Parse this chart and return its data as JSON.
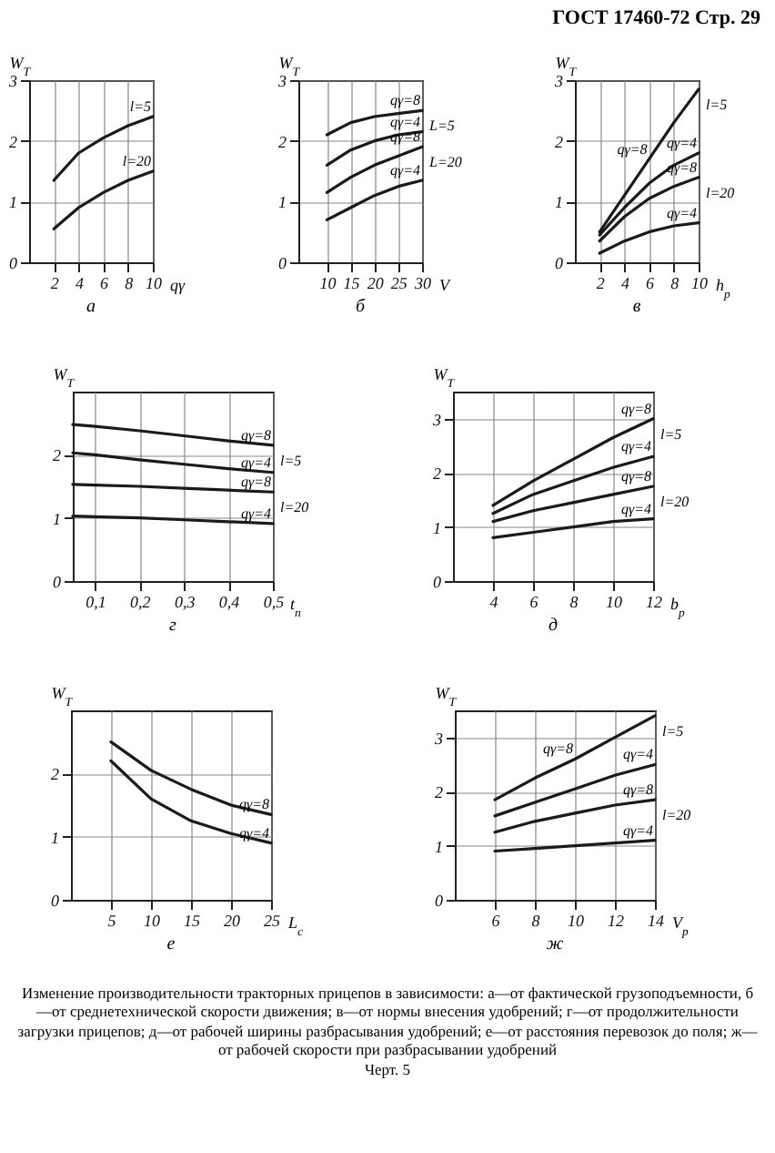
{
  "chart_data": [
    {
      "type": "line",
      "title": "а",
      "xlabel": "qγ",
      "ylabel": "W$_{T}$",
      "x": [
        2,
        4,
        6,
        8,
        10
      ],
      "xlim": [
        0,
        10
      ],
      "xticks": [
        2,
        4,
        6,
        8,
        10
      ],
      "ylim": [
        0,
        3
      ],
      "yticks": [
        0,
        1,
        2,
        3
      ],
      "grid": true,
      "annotations": [
        "ГОСТ 17460-72 Стр. 29"
      ],
      "series": [
        {
          "name": "l=5",
          "color": "#1a1a1a",
          "values": [
            1.35,
            1.8,
            2.05,
            2.25,
            2.4
          ]
        },
        {
          "name": "l=20",
          "color": "#1a1a1a",
          "values": [
            0.55,
            0.9,
            1.15,
            1.35,
            1.5
          ]
        }
      ]
    },
    {
      "type": "line",
      "title": "б",
      "xlabel": "V",
      "ylabel": "W$_{T}$",
      "x": [
        10,
        15,
        20,
        25,
        30
      ],
      "xlim": [
        4,
        30
      ],
      "xticks": [
        10,
        15,
        20,
        25,
        30
      ],
      "ylim": [
        0,
        3
      ],
      "yticks": [
        0,
        1,
        2,
        3
      ],
      "grid": true,
      "annotations": [
        {
          "text": "L=5",
          "x": 30,
          "y": 2.5
        },
        {
          "text": "L=20",
          "x": 30,
          "y": 1.9
        }
      ],
      "series": [
        {
          "name": "qγ=8",
          "color": "#1a1a1a",
          "values": [
            2.1,
            2.3,
            2.4,
            2.45,
            2.5
          ]
        },
        {
          "name": "qγ=4",
          "color": "#1a1a1a",
          "values": [
            1.6,
            1.85,
            2.0,
            2.1,
            2.15
          ]
        },
        {
          "name": "qγ=8",
          "color": "#1a1a1a",
          "values": [
            1.15,
            1.4,
            1.6,
            1.75,
            1.9
          ]
        },
        {
          "name": "qγ=4",
          "color": "#1a1a1a",
          "values": [
            0.7,
            0.9,
            1.1,
            1.25,
            1.35
          ]
        }
      ]
    },
    {
      "type": "line",
      "title": "в",
      "xlabel": "h$_{p}$",
      "ylabel": "W$_{T}$",
      "x": [
        2,
        4,
        6,
        8,
        10
      ],
      "xlim": [
        0,
        10
      ],
      "xticks": [
        2,
        4,
        6,
        8,
        10
      ],
      "ylim": [
        0,
        3
      ],
      "yticks": [
        0,
        1,
        2,
        3
      ],
      "grid": true,
      "annotations": [
        {
          "text": "l=5",
          "x": 10,
          "y": 2.85
        },
        {
          "text": "l=20",
          "x": 10,
          "y": 1.4
        }
      ],
      "series": [
        {
          "name": "qγ=8",
          "color": "#1a1a1a",
          "values": [
            0.5,
            1.1,
            1.7,
            2.3,
            2.85
          ]
        },
        {
          "name": "qγ=4",
          "color": "#1a1a1a",
          "values": [
            0.45,
            0.9,
            1.3,
            1.6,
            1.8
          ]
        },
        {
          "name": "qγ=8",
          "color": "#1a1a1a",
          "values": [
            0.35,
            0.75,
            1.05,
            1.25,
            1.4
          ]
        },
        {
          "name": "qγ=4",
          "color": "#1a1a1a",
          "values": [
            0.15,
            0.35,
            0.5,
            0.6,
            0.65
          ]
        }
      ]
    },
    {
      "type": "line",
      "title": "г",
      "xlabel": "t$_{п}$",
      "ylabel": "W$_{T}$",
      "x": [
        0.05,
        0.1,
        0.2,
        0.3,
        0.4,
        0.5
      ],
      "xlim": [
        0.05,
        0.5
      ],
      "xticks": [
        {
          "value": 0.1,
          "label": "0,1"
        },
        {
          "value": 0.2,
          "label": "0,2"
        },
        {
          "value": 0.3,
          "label": "0,3"
        },
        {
          "value": 0.4,
          "label": "0,4"
        },
        {
          "value": 0.5,
          "label": "0,5"
        }
      ],
      "ylim": [
        0,
        3
      ],
      "yticks": [
        0,
        1,
        2
      ],
      "grid": true,
      "annotations": [
        {
          "text": "l=5",
          "x": 0.5,
          "y": 2.15
        },
        {
          "text": "l=20",
          "x": 0.5,
          "y": 1.41
        }
      ],
      "series": [
        {
          "name": "qγ=8",
          "color": "#1a1a1a",
          "values": [
            2.48,
            2.45,
            2.38,
            2.3,
            2.22,
            2.15
          ]
        },
        {
          "name": "qγ=4",
          "color": "#1a1a1a",
          "values": [
            2.03,
            2.0,
            1.92,
            1.85,
            1.78,
            1.72
          ]
        },
        {
          "name": "qγ=8",
          "color": "#1a1a1a",
          "values": [
            1.53,
            1.52,
            1.5,
            1.47,
            1.44,
            1.41
          ]
        },
        {
          "name": "qγ=4",
          "color": "#1a1a1a",
          "values": [
            1.03,
            1.02,
            1.0,
            0.97,
            0.94,
            0.91
          ]
        }
      ]
    },
    {
      "type": "line",
      "title": "д",
      "xlabel": "b$_{р}$",
      "ylabel": "W$_{T}$",
      "x": [
        4,
        6,
        8,
        10,
        12
      ],
      "xlim": [
        2,
        12
      ],
      "xticks": [
        4,
        6,
        8,
        10,
        12
      ],
      "ylim": [
        0,
        3.5
      ],
      "yticks": [
        0,
        1,
        2,
        3
      ],
      "grid": true,
      "annotations": [
        {
          "text": "l=5",
          "x": 12,
          "y": 3.0
        },
        {
          "text": "l=20",
          "x": 12,
          "y": 1.75
        }
      ],
      "series": [
        {
          "name": "qγ=8",
          "color": "#1a1a1a",
          "values": [
            1.4,
            1.85,
            2.25,
            2.65,
            3.0
          ]
        },
        {
          "name": "qγ=4",
          "color": "#1a1a1a",
          "values": [
            1.25,
            1.6,
            1.85,
            2.1,
            2.3
          ]
        },
        {
          "name": "qγ=8",
          "color": "#1a1a1a",
          "values": [
            1.1,
            1.3,
            1.45,
            1.6,
            1.75
          ]
        },
        {
          "name": "qγ=4",
          "color": "#1a1a1a",
          "values": [
            0.8,
            0.9,
            1.0,
            1.1,
            1.15
          ]
        }
      ]
    },
    {
      "type": "line",
      "title": "е",
      "xlabel": "L$_{c}$",
      "ylabel": "W$_{T}$",
      "x": [
        5,
        10,
        15,
        20,
        25
      ],
      "xlim": [
        0,
        25
      ],
      "xticks": [
        5,
        10,
        15,
        20,
        25
      ],
      "ylim": [
        0,
        3
      ],
      "yticks": [
        0,
        1,
        2
      ],
      "grid": true,
      "series": [
        {
          "name": "qγ=8",
          "color": "#1a1a1a",
          "values": [
            2.5,
            2.05,
            1.75,
            1.5,
            1.35
          ]
        },
        {
          "name": "qγ=4",
          "color": "#1a1a1a",
          "values": [
            2.2,
            1.6,
            1.25,
            1.05,
            0.9
          ]
        }
      ]
    },
    {
      "type": "line",
      "title": "ж",
      "xlabel": "V$_{p}$",
      "ylabel": "W$_{T}$",
      "x": [
        6,
        8,
        10,
        12,
        14
      ],
      "xlim": [
        4,
        14
      ],
      "xticks": [
        6,
        8,
        10,
        12,
        14
      ],
      "ylim": [
        0,
        3.5
      ],
      "yticks": [
        0,
        1,
        2,
        3
      ],
      "grid": true,
      "annotations": [
        {
          "text": "l=5",
          "x": 14,
          "y": 3.4
        },
        {
          "text": "l=20",
          "x": 14,
          "y": 1.85
        },
        "Изменение производительности тракторных прицепов в зависимости: а—от фактической грузоподъемности, б—от среднетехнической скорости движения; в—от нормы внесения удобрений; г—от продолжительности загрузки прицепов; д—от рабочей ширины разбрасывания удобрений; е—от расстояния перевозок до поля; ж—от рабочей скорости при разбрасывании удобрений",
        "Черт. 5"
      ],
      "series": [
        {
          "name": "qγ=8",
          "color": "#1a1a1a",
          "values": [
            1.85,
            2.25,
            2.6,
            3.0,
            3.4
          ]
        },
        {
          "name": "qγ=4",
          "color": "#1a1a1a",
          "values": [
            1.55,
            1.8,
            2.05,
            2.3,
            2.5
          ]
        },
        {
          "name": "qγ=8",
          "color": "#1a1a1a",
          "values": [
            1.25,
            1.45,
            1.6,
            1.75,
            1.85
          ]
        },
        {
          "name": "qγ=4",
          "color": "#1a1a1a",
          "values": [
            0.9,
            0.95,
            1.0,
            1.05,
            1.1
          ]
        }
      ]
    }
  ]
}
